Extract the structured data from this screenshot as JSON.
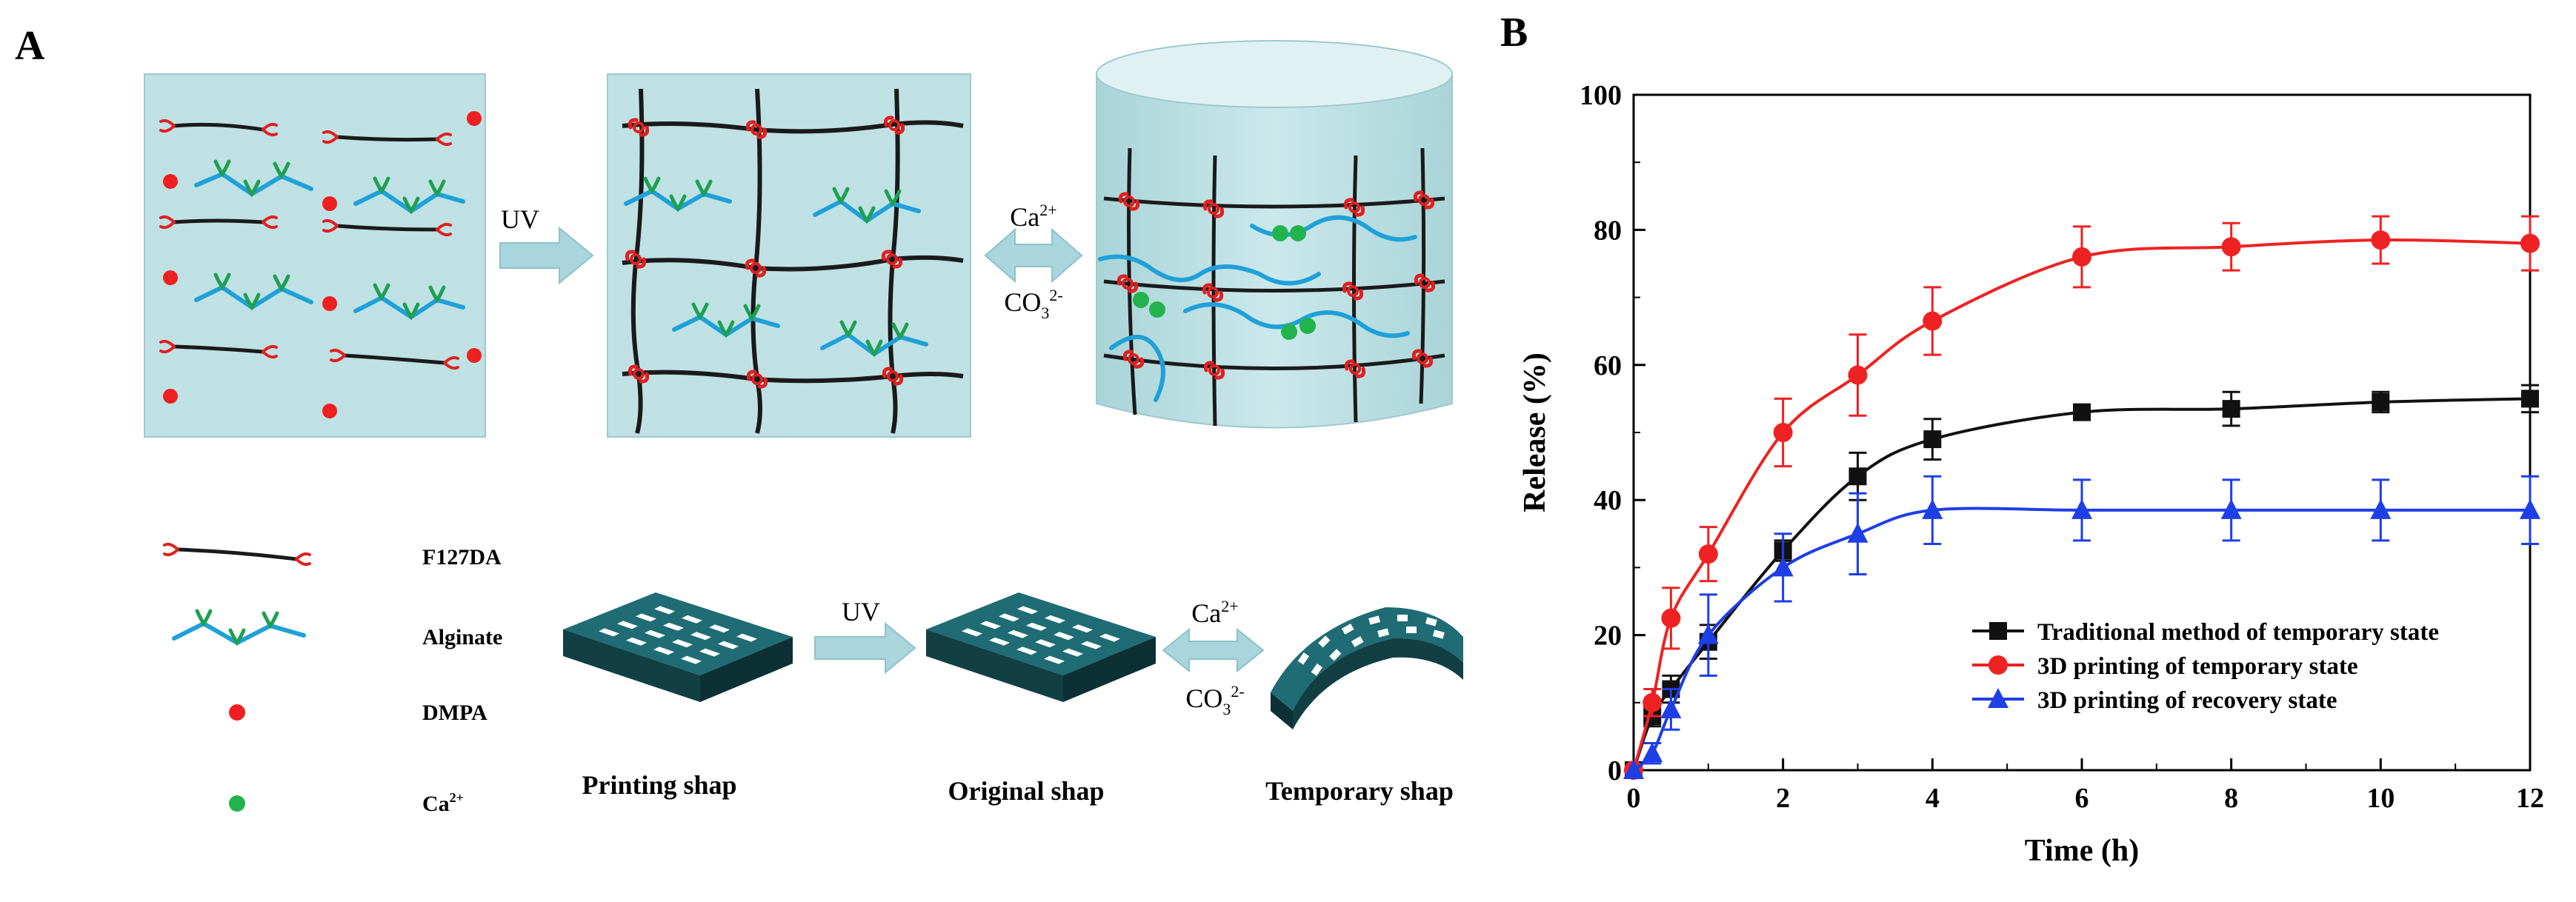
{
  "panel_a": {
    "label": "A",
    "uv_label": "UV",
    "ca_label": "Ca",
    "ca_charge": "2+",
    "co3_label": "CO",
    "co3_sub": "3",
    "co3_charge": "2-",
    "legend": {
      "f127da": "F127DA",
      "alginate": "Alginate",
      "dmpa": "DMPA",
      "ca_base": "Ca",
      "ca_charge": "2+"
    },
    "shapes": {
      "printing": "Printing shap",
      "original": "Original shap",
      "temporary": "Temporary shap"
    },
    "colors": {
      "panel_bg": "#bfe1e4",
      "f127da": "#1a1a1a",
      "crosslink": "#e02020",
      "alginate": "#1fa0d8",
      "alginate_arms": "#1ea050",
      "dmpa": "#ee2020",
      "calcium": "#22b34c",
      "arrow": "#a9d6dc",
      "scaffold": "#1d5f66"
    }
  },
  "panel_b": {
    "label": "B",
    "chart_data": {
      "type": "line",
      "xlabel": "Time (h)",
      "ylabel": "Release (%)",
      "xlim": [
        0,
        12
      ],
      "ylim": [
        0,
        100
      ],
      "xticks": [
        "0",
        "2",
        "4",
        "6",
        "8",
        "10",
        "12"
      ],
      "yticks": [
        "0",
        "20",
        "40",
        "60",
        "80",
        "100"
      ],
      "grid": false,
      "legend_position": "bottom-right",
      "series": [
        {
          "name": "Traditional method of temporary state",
          "marker": "square",
          "color": "#111111",
          "x": [
            0,
            0.25,
            0.5,
            1,
            2,
            3,
            4,
            6,
            8,
            10,
            12
          ],
          "y": [
            0,
            8,
            12,
            19,
            32.5,
            43.5,
            49,
            53,
            53.5,
            54.5,
            55
          ],
          "err": [
            0,
            1.5,
            2,
            2.5,
            1.5,
            3.5,
            3,
            1,
            2.5,
            1.5,
            2
          ]
        },
        {
          "name": "3D printing of temporary state",
          "marker": "circle",
          "color": "#ee2222",
          "x": [
            0,
            0.25,
            0.5,
            1,
            2,
            3,
            4,
            6,
            8,
            10,
            12
          ],
          "y": [
            0,
            10,
            22.5,
            32,
            50,
            58.5,
            66.5,
            76,
            77.5,
            78.5,
            78
          ],
          "err": [
            0,
            2,
            4.5,
            4,
            5,
            6,
            5,
            4.5,
            3.5,
            3.5,
            4
          ]
        },
        {
          "name": "3D printing of recovery state",
          "marker": "triangle",
          "color": "#1e3ee6",
          "x": [
            0,
            0.25,
            0.5,
            1,
            2,
            3,
            4,
            6,
            8,
            10,
            12
          ],
          "y": [
            0,
            2.5,
            9,
            20,
            30,
            35,
            38.5,
            38.5,
            38.5,
            38.5,
            38.5
          ],
          "err": [
            0,
            1.5,
            3,
            6,
            5,
            6,
            5,
            4.5,
            4.5,
            4.5,
            5
          ]
        }
      ]
    }
  }
}
